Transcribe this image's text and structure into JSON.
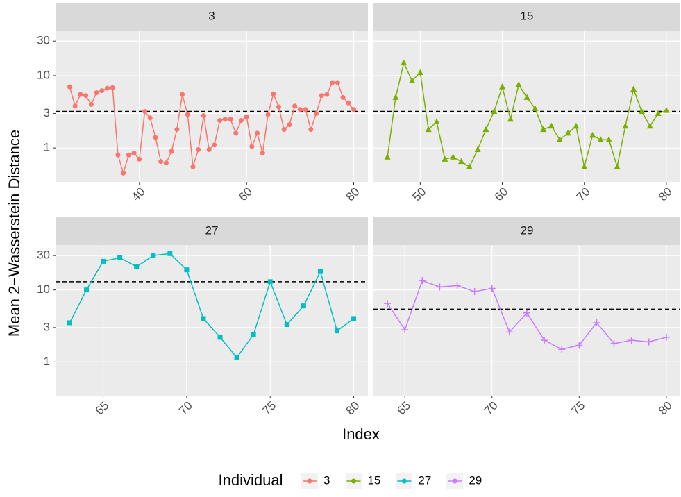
{
  "y_label": "Mean 2−Wasserstein Distance",
  "x_label": "Index",
  "legend_title": "Individual",
  "chart_data": [
    {
      "type": "line",
      "title": "3",
      "marker": "circle",
      "log_y": true,
      "grid": true,
      "hline": 3.2,
      "x": [
        27,
        28,
        29,
        30,
        31,
        32,
        33,
        34,
        35,
        36,
        37,
        38,
        39,
        40,
        41,
        42,
        43,
        44,
        45,
        46,
        47,
        48,
        49,
        50,
        51,
        52,
        53,
        54,
        55,
        56,
        57,
        58,
        59,
        60,
        61,
        62,
        63,
        64,
        65,
        66,
        67,
        68,
        69,
        70,
        71,
        72,
        73,
        74,
        75,
        76,
        77,
        78,
        79,
        80
      ],
      "series": [
        {
          "name": "3",
          "color": "#F8766D",
          "values": [
            7,
            3.8,
            5.5,
            5.3,
            4.0,
            5.8,
            6.2,
            6.7,
            6.8,
            0.8,
            0.45,
            0.8,
            0.85,
            0.7,
            3.2,
            2.6,
            1.4,
            0.65,
            0.62,
            0.9,
            1.8,
            5.5,
            2.9,
            0.55,
            0.95,
            2.8,
            0.95,
            1.1,
            2.4,
            2.5,
            2.5,
            1.6,
            2.4,
            2.7,
            1.05,
            1.6,
            0.85,
            2.9,
            5.6,
            3.7,
            1.8,
            2.1,
            3.8,
            3.4,
            3.4,
            1.8,
            3.0,
            5.3,
            5.5,
            8,
            8,
            5,
            4.2,
            3.4
          ]
        }
      ],
      "xlim": [
        24.35,
        82.65
      ],
      "xticks": [
        40,
        60,
        80
      ],
      "ylim": [
        0.34,
        42
      ],
      "yticks": [
        1,
        3,
        10,
        30
      ]
    },
    {
      "type": "line",
      "title": "15",
      "marker": "triangle",
      "log_y": true,
      "grid": true,
      "hline": 3.2,
      "x": [
        46,
        47,
        48,
        49,
        50,
        51,
        52,
        53,
        54,
        55,
        56,
        57,
        58,
        59,
        60,
        61,
        62,
        63,
        64,
        65,
        66,
        67,
        68,
        69,
        70,
        71,
        72,
        73,
        74,
        75,
        76,
        77,
        78,
        79,
        80
      ],
      "series": [
        {
          "name": "15",
          "color": "#7CAE00",
          "values": [
            0.75,
            5,
            15,
            8.5,
            11,
            1.8,
            2.3,
            0.7,
            0.75,
            0.65,
            0.55,
            0.95,
            1.8,
            3.2,
            7,
            2.5,
            7.5,
            5,
            3.5,
            1.8,
            2.0,
            1.3,
            1.6,
            2.0,
            0.55,
            1.5,
            1.3,
            1.3,
            0.55,
            2.0,
            6.5,
            3.2,
            2.0,
            3.0,
            3.3
          ]
        }
      ],
      "xlim": [
        44.3,
        81.7
      ],
      "xticks": [
        50,
        60,
        70,
        80
      ],
      "ylim": [
        0.34,
        42
      ],
      "yticks": [
        1,
        3,
        10,
        30
      ]
    },
    {
      "type": "line",
      "title": "27",
      "marker": "square",
      "log_y": true,
      "grid": true,
      "hline": 13,
      "x": [
        63,
        64,
        65,
        66,
        67,
        68,
        69,
        70,
        71,
        72,
        73,
        74,
        75,
        76,
        77,
        78,
        79,
        80
      ],
      "series": [
        {
          "name": "27",
          "color": "#00BFC4",
          "values": [
            3.5,
            10,
            25,
            28,
            21,
            30,
            32,
            19,
            4,
            2.2,
            1.15,
            2.4,
            13,
            3.3,
            6,
            18,
            2.7,
            4
          ]
        }
      ],
      "xlim": [
        62.15,
        80.85
      ],
      "xticks": [
        65,
        70,
        75,
        80
      ],
      "ylim": [
        0.34,
        42
      ],
      "yticks": [
        1,
        3,
        10,
        30
      ]
    },
    {
      "type": "line",
      "title": "29",
      "marker": "plus",
      "log_y": true,
      "grid": true,
      "hline": 5.4,
      "x": [
        64,
        65,
        66,
        67,
        68,
        69,
        70,
        71,
        72,
        73,
        74,
        75,
        76,
        77,
        78,
        79,
        80
      ],
      "series": [
        {
          "name": "29",
          "color": "#C77CFF",
          "values": [
            6.5,
            2.8,
            13.5,
            11,
            11.5,
            9.5,
            10.5,
            2.6,
            4.8,
            2.0,
            1.5,
            1.7,
            3.5,
            1.8,
            2.0,
            1.9,
            2.2
          ]
        }
      ],
      "xlim": [
        63.2,
        80.8
      ],
      "xticks": [
        65,
        70,
        75,
        80
      ],
      "ylim": [
        0.34,
        42
      ],
      "yticks": [
        1,
        3,
        10,
        30
      ]
    }
  ]
}
